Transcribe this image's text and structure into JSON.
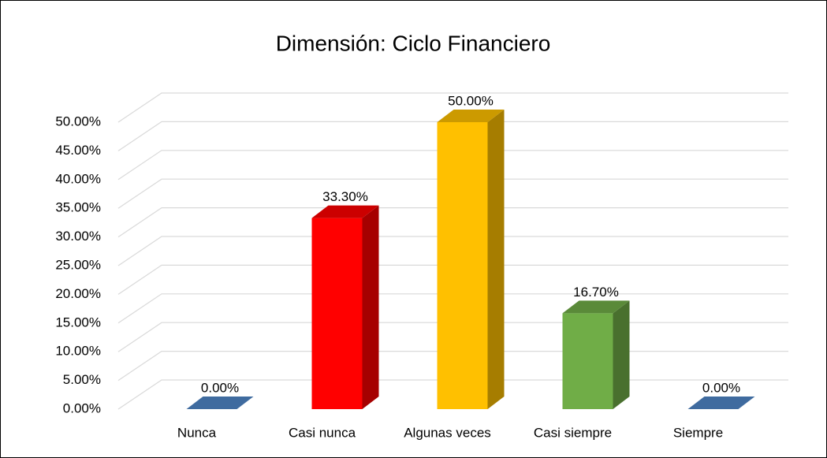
{
  "chart_data": {
    "type": "bar3d",
    "title": "Dimensión: Ciclo Financiero",
    "categories": [
      "Nunca",
      "Casi nunca",
      "Algunas veces",
      "Casi siempre",
      "Siempre"
    ],
    "values": [
      0,
      33.3,
      50,
      16.7,
      0
    ],
    "value_labels": [
      "0.00%",
      "33.30%",
      "50.00%",
      "16.70%",
      "0.00%"
    ],
    "colors": [
      "#4a7ebb",
      "#ff0000",
      "#ffc000",
      "#70ad47",
      "#4a7ebb"
    ],
    "ylim": [
      0,
      50
    ],
    "yticks": [
      {
        "value": 0,
        "label": "0.00%"
      },
      {
        "value": 5,
        "label": "5.00%"
      },
      {
        "value": 10,
        "label": "10.00%"
      },
      {
        "value": 15,
        "label": "15.00%"
      },
      {
        "value": 20,
        "label": "20.00%"
      },
      {
        "value": 25,
        "label": "25.00%"
      },
      {
        "value": 30,
        "label": "30.00%"
      },
      {
        "value": 35,
        "label": "35.00%"
      },
      {
        "value": 40,
        "label": "40.00%"
      },
      {
        "value": 45,
        "label": "45.00%"
      },
      {
        "value": 50,
        "label": "50.00%"
      }
    ],
    "grid": true
  }
}
